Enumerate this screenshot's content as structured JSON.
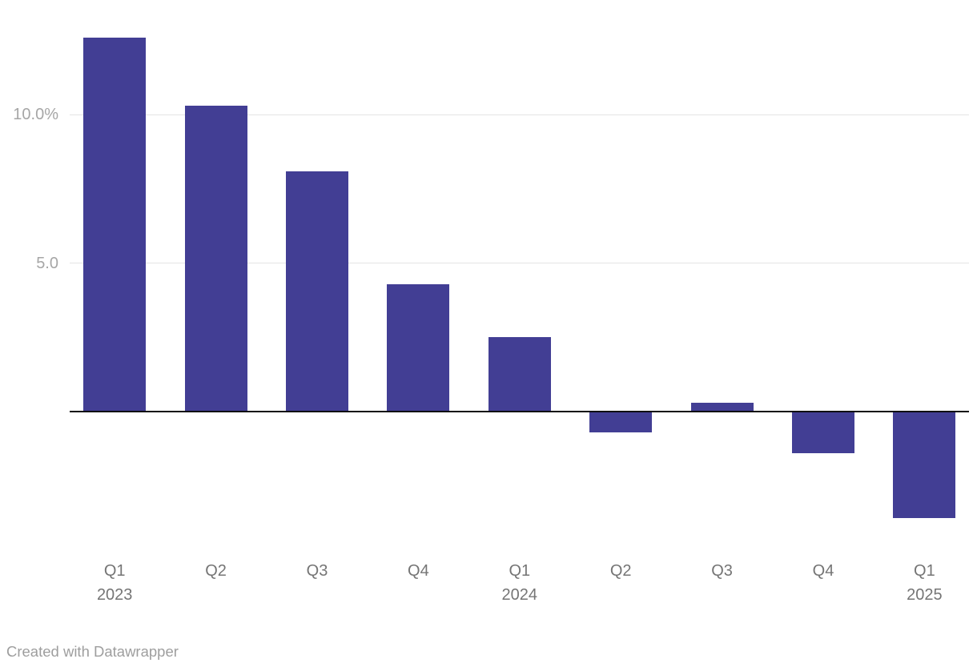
{
  "chart_data": {
    "type": "bar",
    "title": "",
    "xlabel": "",
    "ylabel": "",
    "unit": "%",
    "categories": [
      "Q1 2023",
      "Q2 2023",
      "Q3 2023",
      "Q4 2023",
      "Q1 2024",
      "Q2 2024",
      "Q3 2024",
      "Q4 2024",
      "Q1 2025"
    ],
    "x_tick_labels": [
      [
        "Q1",
        "2023"
      ],
      [
        "Q2"
      ],
      [
        "Q3"
      ],
      [
        "Q4"
      ],
      [
        "Q1",
        "2024"
      ],
      [
        "Q2"
      ],
      [
        "Q3"
      ],
      [
        "Q4"
      ],
      [
        "Q1",
        "2025"
      ]
    ],
    "values": [
      12.6,
      10.3,
      8.1,
      4.3,
      2.5,
      -0.7,
      0.3,
      -1.4,
      -3.6
    ],
    "y_ticks": [
      {
        "value": 10,
        "label": "10.0%"
      },
      {
        "value": 5,
        "label": "5.0"
      }
    ],
    "ylim": [
      -4.3,
      13.1
    ],
    "baseline": 0,
    "grid": "horizontal",
    "legend": "none",
    "colors": {
      "bar": "#423e94",
      "gridline": "#e4e4e4",
      "baseline": "#0f0f0f",
      "y_tick_text": "#a6a6a6",
      "x_tick_text": "#757575",
      "credit_text": "#9e9e9e",
      "background": "#ffffff"
    }
  },
  "footer": {
    "credit": "Created with Datawrapper"
  }
}
